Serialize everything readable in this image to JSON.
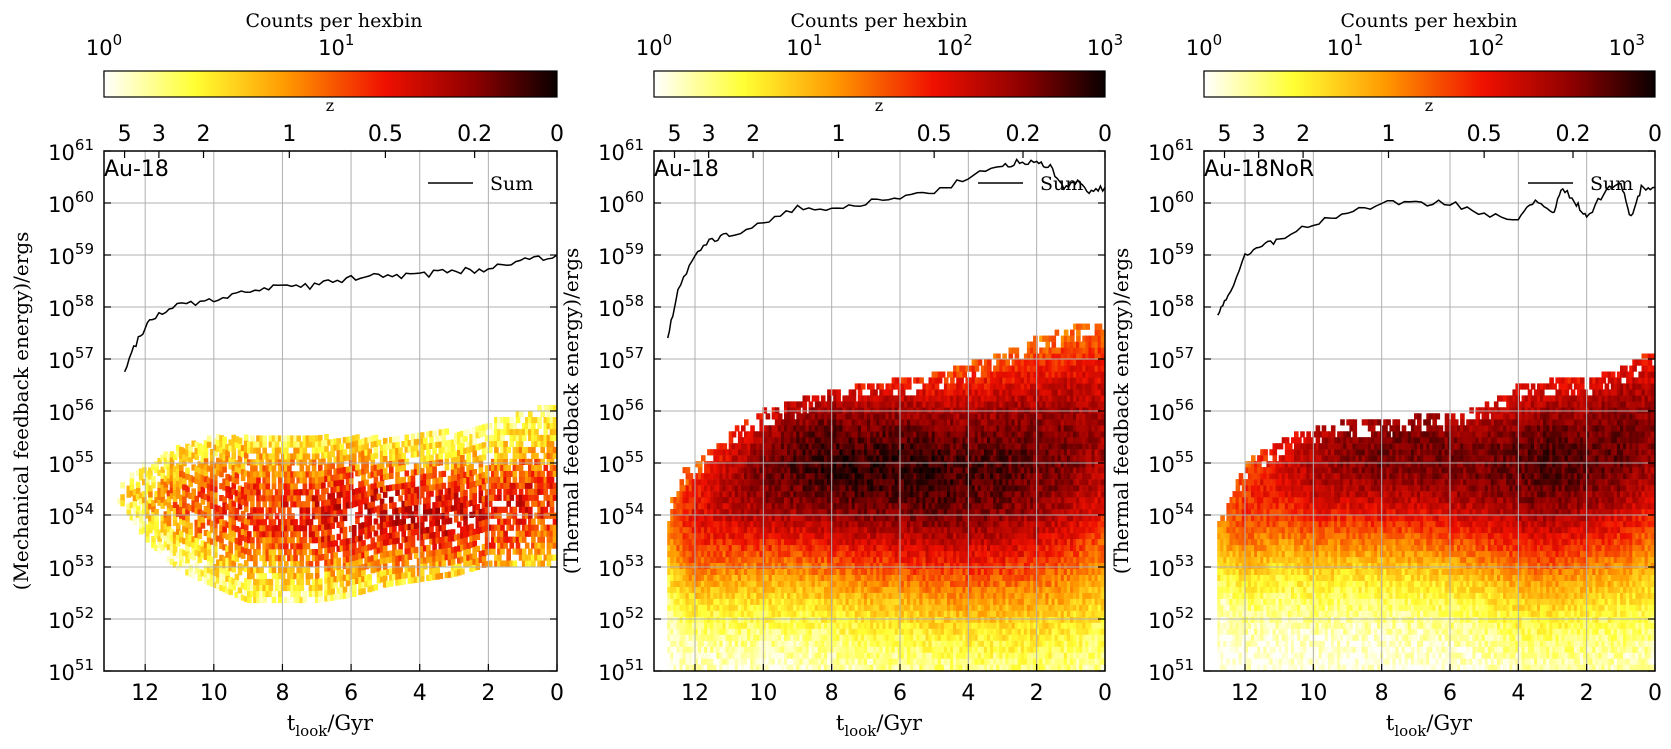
{
  "chart_data": [
    {
      "type": "heatmap",
      "panel_label": "Au-18",
      "title": "",
      "xlabel_base": "t",
      "xlabel_sub": "look",
      "xlabel_unit": "/Gyr",
      "ylabel": "(Mechanical feedback energy)/ergs",
      "xlim": [
        13.2,
        0
      ],
      "ylim_log10": [
        51,
        61
      ],
      "yscale": "log",
      "x_ticks": [
        "12",
        "10",
        "8",
        "6",
        "4",
        "2",
        "0"
      ],
      "top_axis_label": "z",
      "top_axis_ticks": [
        "5",
        "3",
        "2",
        "1",
        "0.5",
        "0.2",
        "0"
      ],
      "grid": true,
      "legend": {
        "position": "top-right",
        "entries": [
          "Sum"
        ]
      },
      "colorbar": {
        "label": "Counts per hexbin",
        "scale": "log",
        "range_log10": [
          0,
          1.95
        ],
        "tick_exponents": [
          "0",
          "1"
        ]
      },
      "sum_series": {
        "name": "Sum",
        "t": [
          12.6,
          12.2,
          11.8,
          11.2,
          10.4,
          9.6,
          8.8,
          8.0,
          7.2,
          6.4,
          5.6,
          4.8,
          4.0,
          3.2,
          2.4,
          1.6,
          0.8,
          0.0
        ],
        "log10_E": [
          56.8,
          57.4,
          57.8,
          58.0,
          58.1,
          58.2,
          58.3,
          58.4,
          58.4,
          58.5,
          58.6,
          58.6,
          58.6,
          58.7,
          58.7,
          58.8,
          58.9,
          59.0
        ]
      },
      "hexbin_density": {
        "t": [
          12.7,
          12.0,
          11.0,
          10.0,
          9.0,
          8.0,
          7.0,
          6.0,
          5.0,
          4.0,
          3.0,
          2.0,
          1.0,
          0.2
        ],
        "log10_E_top": [
          54.6,
          55.0,
          55.3,
          55.5,
          55.5,
          55.5,
          55.5,
          55.5,
          55.5,
          55.6,
          55.6,
          55.8,
          56.0,
          56.1
        ],
        "log10_E_bottom": [
          54.2,
          53.5,
          52.9,
          52.6,
          52.3,
          52.3,
          52.3,
          52.4,
          52.6,
          52.7,
          52.8,
          53.0,
          53.0,
          53.0
        ],
        "log10_E_peak": [
          54.4,
          54.3,
          54.3,
          54.2,
          54.1,
          54.0,
          54.0,
          54.0,
          54.0,
          54.0,
          54.0,
          54.0,
          54.2,
          54.3
        ],
        "peak_log10_count": [
          0.4,
          0.6,
          0.9,
          1.0,
          1.1,
          1.1,
          1.2,
          1.3,
          1.3,
          1.3,
          1.3,
          1.2,
          1.2,
          1.1
        ]
      }
    },
    {
      "type": "heatmap",
      "panel_label": "Au-18",
      "title": "",
      "xlabel_base": "t",
      "xlabel_sub": "look",
      "xlabel_unit": "/Gyr",
      "ylabel": "(Thermal feedback energy)/ergs",
      "xlim": [
        13.2,
        0
      ],
      "ylim_log10": [
        51,
        61
      ],
      "yscale": "log",
      "x_ticks": [
        "12",
        "10",
        "8",
        "6",
        "4",
        "2",
        "0"
      ],
      "top_axis_label": "z",
      "top_axis_ticks": [
        "5",
        "3",
        "2",
        "1",
        "0.5",
        "0.2",
        "0"
      ],
      "grid": true,
      "legend": {
        "position": "top-right",
        "entries": [
          "Sum"
        ]
      },
      "colorbar": {
        "label": "Counts per hexbin",
        "scale": "log",
        "range_log10": [
          0,
          3
        ],
        "tick_exponents": [
          "0",
          "1",
          "2",
          "3"
        ]
      },
      "sum_series": {
        "name": "Sum",
        "t": [
          12.8,
          12.5,
          12.0,
          11.5,
          11.0,
          10.0,
          9.0,
          8.0,
          7.0,
          6.0,
          5.0,
          4.0,
          3.0,
          2.5,
          2.0,
          1.6,
          1.2,
          0.8,
          0.4,
          0.0
        ],
        "log10_E": [
          57.4,
          58.3,
          59.0,
          59.3,
          59.4,
          59.6,
          59.9,
          59.9,
          60.0,
          60.1,
          60.2,
          60.5,
          60.7,
          60.8,
          60.8,
          60.7,
          60.3,
          60.4,
          60.2,
          60.3
        ]
      },
      "hexbin_density": {
        "t": [
          12.8,
          12.5,
          12.0,
          11.0,
          10.0,
          9.0,
          8.0,
          7.0,
          6.0,
          5.0,
          4.0,
          3.0,
          2.0,
          1.0,
          0.2
        ],
        "log10_E_top": [
          54.0,
          54.8,
          55.0,
          55.6,
          56.0,
          56.2,
          56.4,
          56.5,
          56.6,
          56.7,
          56.9,
          57.1,
          57.4,
          57.6,
          57.7
        ],
        "log10_E_bottom": [
          51.0,
          51.0,
          51.0,
          51.0,
          51.0,
          51.0,
          51.0,
          51.0,
          51.0,
          51.0,
          51.0,
          51.0,
          51.0,
          51.0,
          51.0
        ],
        "log10_E_peak": [
          53.9,
          54.0,
          54.0,
          54.5,
          54.8,
          55.0,
          55.0,
          54.9,
          54.9,
          54.8,
          54.8,
          54.9,
          55.0,
          55.2,
          55.4
        ],
        "peak_log10_count": [
          1.3,
          1.6,
          1.9,
          2.2,
          2.5,
          2.7,
          2.8,
          2.8,
          2.8,
          2.8,
          2.7,
          2.7,
          2.6,
          2.5,
          2.3
        ]
      }
    },
    {
      "type": "heatmap",
      "panel_label": "Au-18NoR",
      "title": "",
      "xlabel_base": "t",
      "xlabel_sub": "look",
      "xlabel_unit": "/Gyr",
      "ylabel": "(Thermal feedback energy)/ergs",
      "xlim": [
        13.2,
        0
      ],
      "ylim_log10": [
        51,
        61
      ],
      "yscale": "log",
      "x_ticks": [
        "12",
        "10",
        "8",
        "6",
        "4",
        "2",
        "0"
      ],
      "top_axis_label": "z",
      "top_axis_ticks": [
        "5",
        "3",
        "2",
        "1",
        "0.5",
        "0.2",
        "0"
      ],
      "grid": true,
      "legend": {
        "position": "top-right",
        "entries": [
          "Sum"
        ]
      },
      "colorbar": {
        "label": "Counts per hexbin",
        "scale": "log",
        "range_log10": [
          0,
          3.2
        ],
        "tick_exponents": [
          "0",
          "1",
          "2",
          "3"
        ]
      },
      "sum_series": {
        "name": "Sum",
        "t": [
          12.8,
          12.5,
          12.0,
          11.5,
          11.0,
          10.0,
          9.0,
          8.0,
          7.0,
          6.0,
          5.0,
          4.0,
          3.5,
          3.0,
          2.7,
          2.3,
          2.0,
          1.5,
          1.0,
          0.7,
          0.4,
          0.0
        ],
        "log10_E": [
          57.9,
          58.2,
          59.0,
          59.2,
          59.3,
          59.6,
          59.8,
          60.0,
          60.0,
          60.0,
          59.8,
          59.7,
          60.1,
          59.8,
          60.3,
          60.0,
          59.7,
          60.2,
          60.4,
          59.7,
          60.3,
          60.3
        ]
      },
      "hexbin_density": {
        "t": [
          12.8,
          12.5,
          12.0,
          11.0,
          10.0,
          9.0,
          8.0,
          7.0,
          6.0,
          5.0,
          4.0,
          3.0,
          2.0,
          1.0,
          0.2
        ],
        "log10_E_top": [
          53.9,
          54.2,
          55.0,
          55.4,
          55.7,
          55.8,
          55.8,
          55.9,
          55.9,
          56.1,
          56.5,
          56.6,
          56.6,
          56.8,
          57.1
        ],
        "log10_E_bottom": [
          51.0,
          51.0,
          51.0,
          51.0,
          51.0,
          51.0,
          51.0,
          51.0,
          51.0,
          51.0,
          51.0,
          51.0,
          51.0,
          51.0,
          51.0
        ],
        "log10_E_peak": [
          53.9,
          54.1,
          54.3,
          54.9,
          55.0,
          55.2,
          55.2,
          55.2,
          55.1,
          55.0,
          55.0,
          55.0,
          55.1,
          55.3,
          55.5
        ],
        "peak_log10_count": [
          1.2,
          1.5,
          1.8,
          2.1,
          2.4,
          2.6,
          2.7,
          2.7,
          2.7,
          2.7,
          2.8,
          2.9,
          2.8,
          2.8,
          2.6
        ]
      }
    }
  ]
}
